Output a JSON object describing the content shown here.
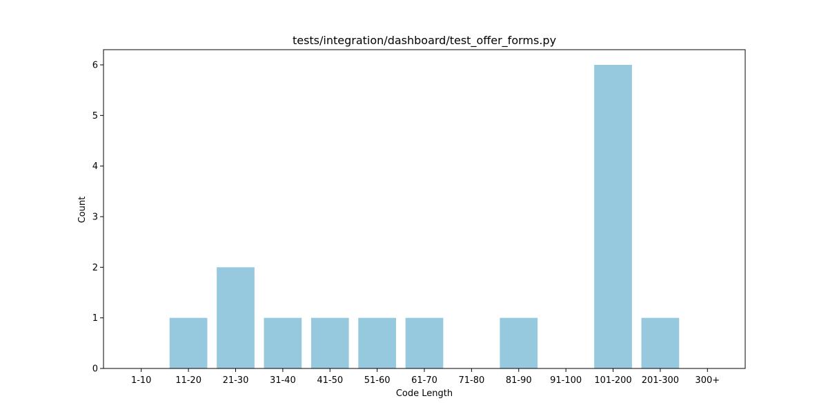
{
  "chart_data": {
    "type": "bar",
    "title": "tests/integration/dashboard/test_offer_forms.py",
    "xlabel": "Code Length",
    "ylabel": "Count",
    "categories": [
      "1-10",
      "11-20",
      "21-30",
      "31-40",
      "41-50",
      "51-60",
      "61-70",
      "71-80",
      "81-90",
      "91-100",
      "101-200",
      "201-300",
      "300+"
    ],
    "values": [
      0,
      1,
      2,
      1,
      1,
      1,
      1,
      0,
      1,
      0,
      6,
      1,
      0
    ],
    "ylim": [
      0,
      6.3
    ],
    "yticks": [
      0,
      1,
      2,
      3,
      4,
      5,
      6
    ],
    "bar_color": "#96c9dd",
    "grid": false,
    "legend": "none"
  }
}
